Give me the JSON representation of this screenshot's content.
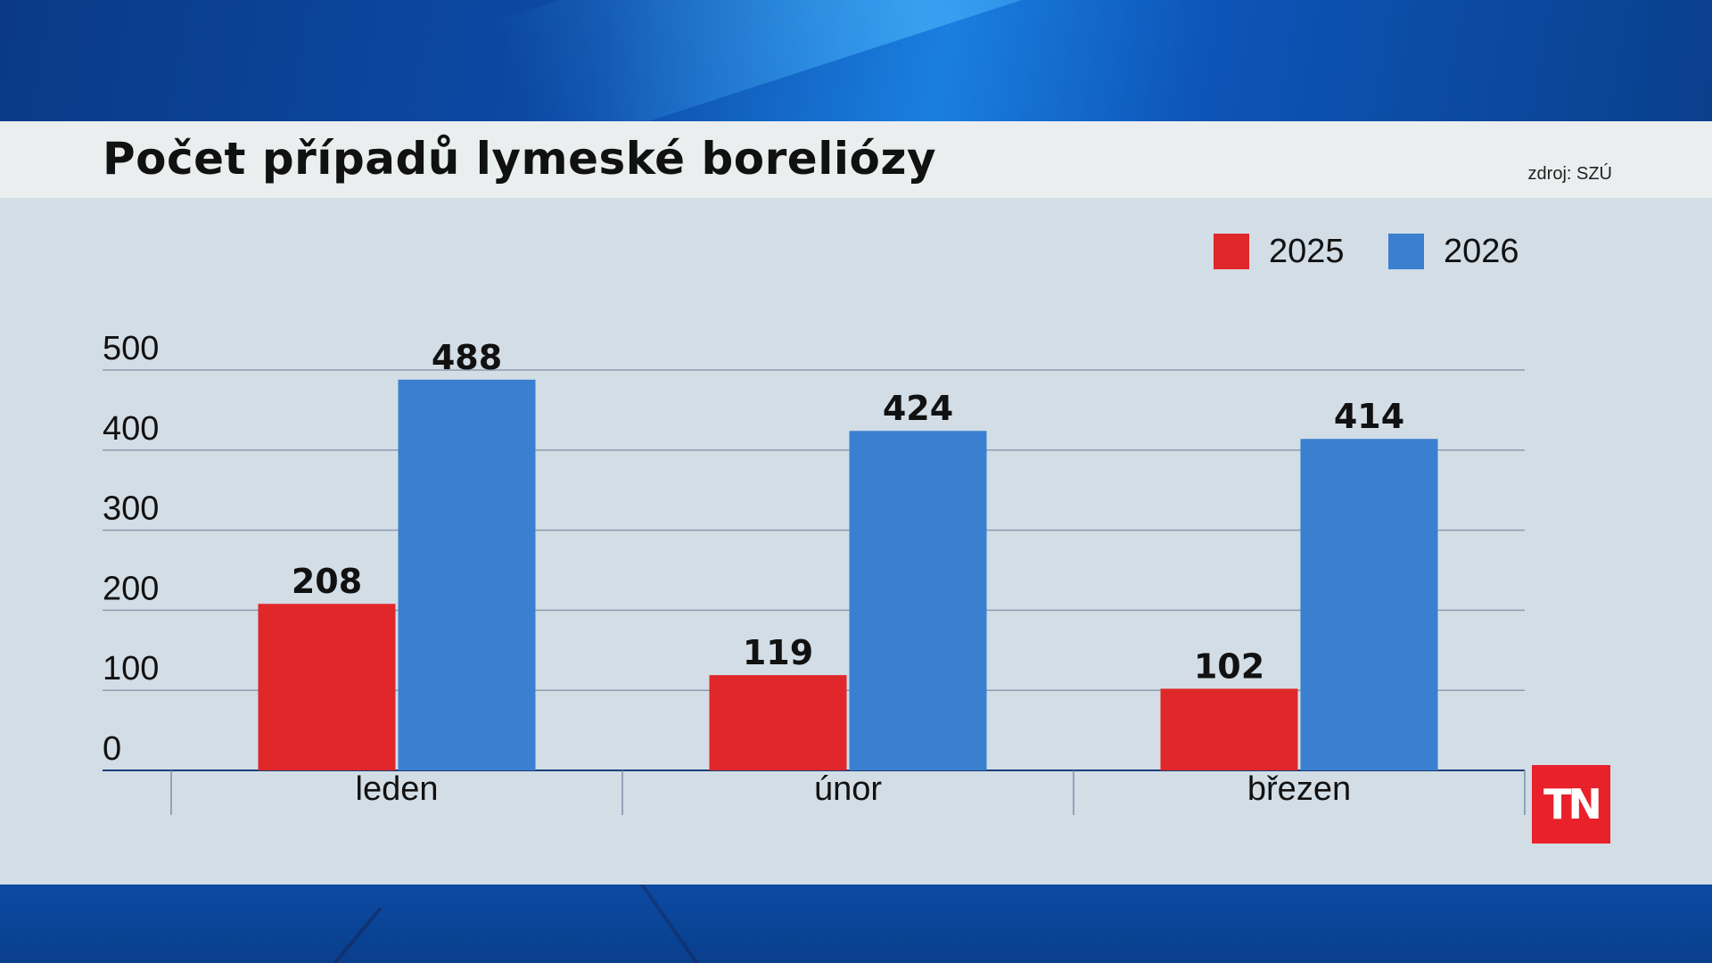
{
  "header": {
    "title": "Počet případů lymeské boreliózy",
    "source": "zdroj: SZÚ"
  },
  "logo": {
    "text": "TN",
    "color": "#e8212a"
  },
  "chart_data": {
    "type": "bar",
    "title": "Počet případů lymeské boreliózy",
    "categories": [
      "leden",
      "únor",
      "březen"
    ],
    "series": [
      {
        "name": "2025",
        "color": "#e0272a",
        "values": [
          208,
          119,
          102
        ]
      },
      {
        "name": "2026",
        "color": "#3a7fd0",
        "values": [
          488,
          424,
          414
        ]
      }
    ],
    "yticks": [
      "500",
      "400",
      "300",
      "200",
      "100",
      "0"
    ],
    "ylim": [
      0,
      500
    ],
    "xlabel": "",
    "ylabel": "",
    "grid": true,
    "legend": "top-right",
    "data_labels": true
  }
}
